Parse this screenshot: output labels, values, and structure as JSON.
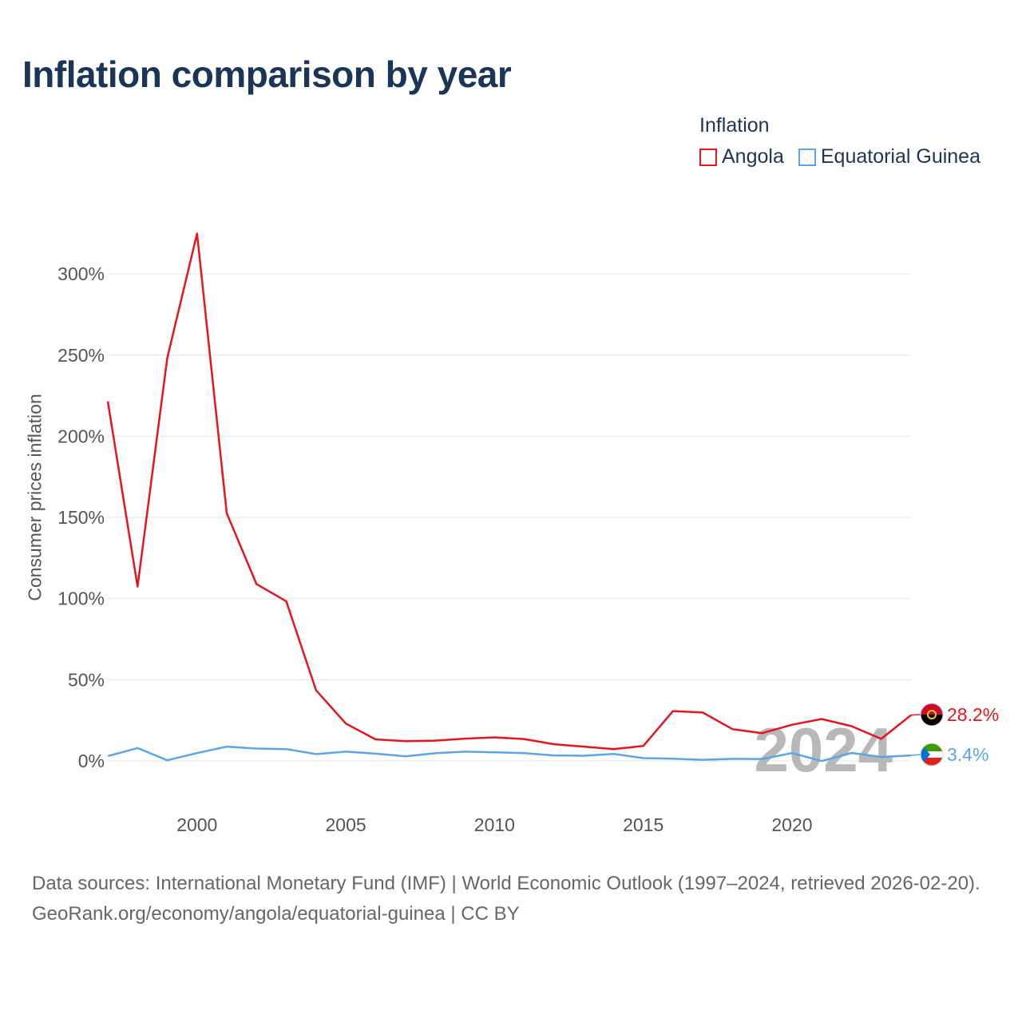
{
  "title": "Inflation comparison by year",
  "legend": {
    "title": "Inflation",
    "items": [
      {
        "label": "Angola",
        "color": "#e8141c"
      },
      {
        "label": "Equatorial Guinea",
        "color": "#5aa5e8"
      }
    ]
  },
  "footer": {
    "sources": "Data sources: International Monetary Fund (IMF) | World Economic Outlook (1997–2024, retrieved 2026-02-20).",
    "credit": "GeoRank.org/economy/angola/equatorial-guinea | CC BY"
  },
  "chart_data": {
    "type": "line",
    "title": "Inflation comparison by year",
    "xlabel": "",
    "ylabel": "Consumer prices inflation",
    "x": [
      1997,
      1998,
      1999,
      2000,
      2001,
      2002,
      2003,
      2004,
      2005,
      2006,
      2007,
      2008,
      2009,
      2010,
      2011,
      2012,
      2013,
      2014,
      2015,
      2016,
      2017,
      2018,
      2019,
      2020,
      2021,
      2022,
      2023,
      2024
    ],
    "xlim": [
      1997,
      2024
    ],
    "xticks": [
      2000,
      2005,
      2010,
      2015,
      2020
    ],
    "xtick_labels": [
      "2000",
      "2005",
      "2010",
      "2015",
      "2020"
    ],
    "ylim": [
      0,
      325
    ],
    "yticks": [
      0,
      50,
      100,
      150,
      200,
      250,
      300
    ],
    "ytick_labels": [
      "0%",
      "50%",
      "100%",
      "150%",
      "200%",
      "250%",
      "300%"
    ],
    "grid": true,
    "watermark_year": "2024",
    "series": [
      {
        "name": "Angola",
        "color": "#e8141c",
        "values": [
          221.5,
          107.4,
          248.2,
          324.9,
          152.6,
          108.9,
          98.3,
          43.6,
          23.0,
          13.3,
          12.2,
          12.5,
          13.7,
          14.5,
          13.5,
          10.3,
          8.8,
          7.3,
          9.2,
          30.7,
          29.8,
          19.6,
          17.1,
          22.3,
          25.8,
          21.4,
          13.6,
          28.2
        ],
        "end_label": "28.2%"
      },
      {
        "name": "Equatorial Guinea",
        "color": "#5aa5e8",
        "values": [
          3.0,
          7.9,
          0.4,
          4.8,
          8.8,
          7.6,
          7.3,
          4.2,
          5.7,
          4.5,
          2.8,
          4.7,
          5.7,
          5.3,
          4.8,
          3.4,
          3.2,
          4.3,
          1.7,
          1.4,
          0.7,
          1.3,
          1.2,
          4.8,
          -0.1,
          4.9,
          2.4,
          3.4
        ],
        "end_label": "3.4%"
      }
    ]
  }
}
